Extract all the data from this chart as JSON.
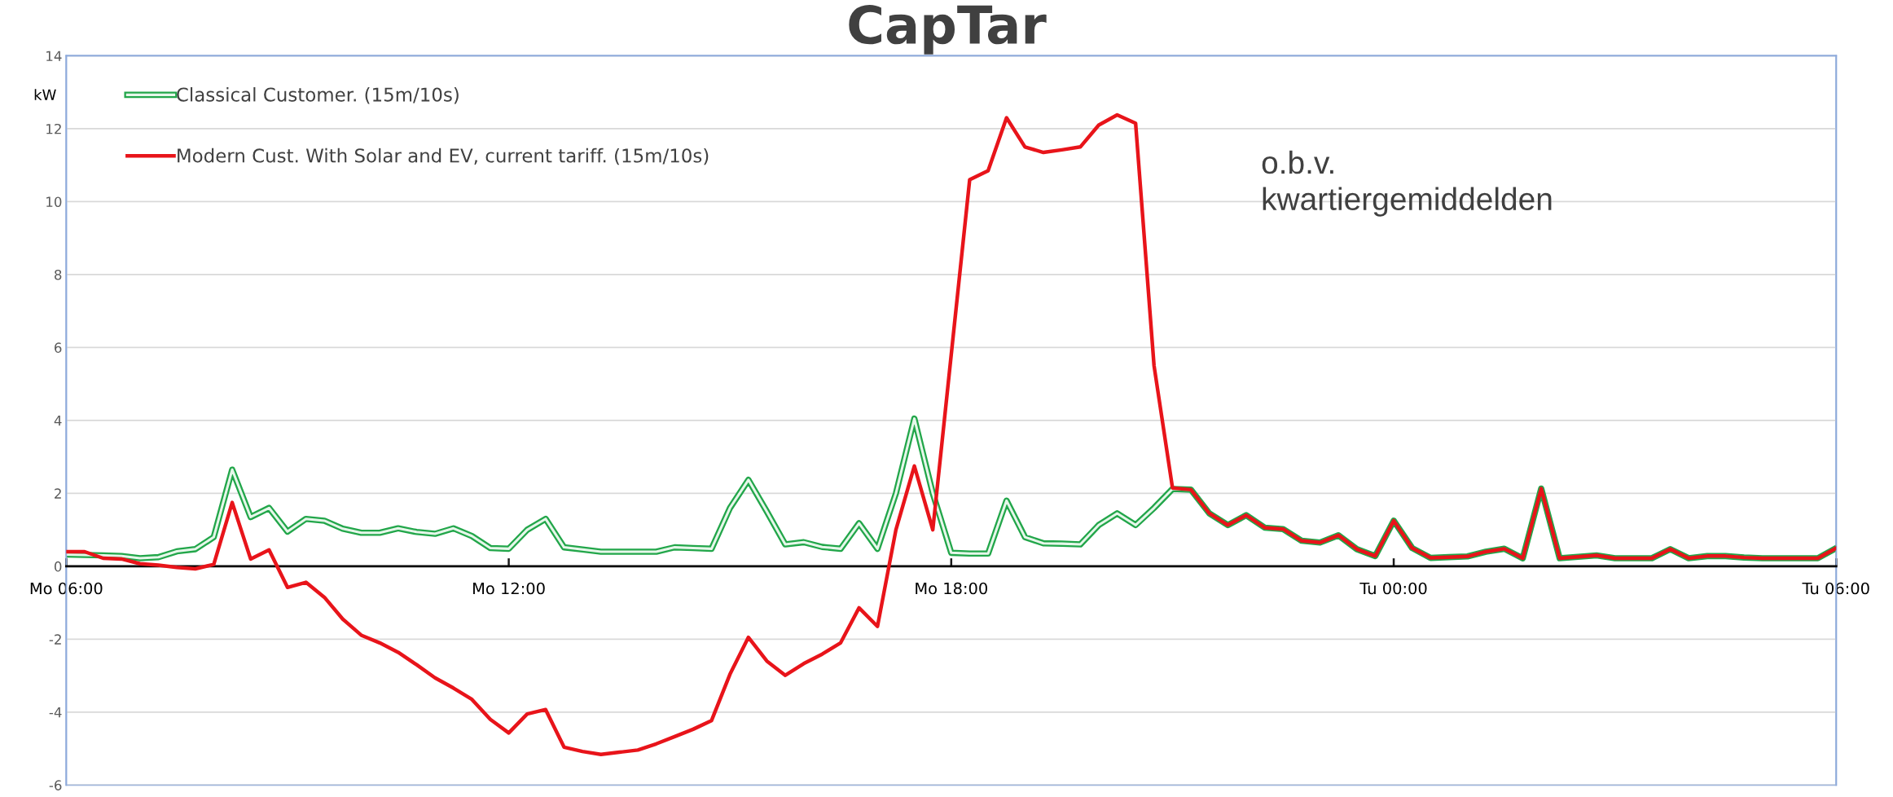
{
  "chart_data": {
    "type": "line",
    "title": "CapTar",
    "ylabel": "kW",
    "annotations": [
      "o.b.v.\nkwartiergemiddelden"
    ],
    "categories": [
      "Mo 06:00",
      null,
      null,
      null,
      null,
      null,
      null,
      null,
      null,
      null,
      null,
      null,
      null,
      null,
      null,
      null,
      null,
      null,
      null,
      null,
      null,
      null,
      null,
      null,
      "Mo 12:00",
      null,
      null,
      null,
      null,
      null,
      null,
      null,
      null,
      null,
      null,
      null,
      null,
      null,
      null,
      null,
      null,
      null,
      null,
      null,
      null,
      null,
      null,
      null,
      "Mo 18:00",
      null,
      null,
      null,
      null,
      null,
      null,
      null,
      null,
      null,
      null,
      null,
      null,
      null,
      null,
      null,
      null,
      null,
      null,
      null,
      null,
      null,
      null,
      null,
      "Tu 00:00",
      null,
      null,
      null,
      null,
      null,
      null,
      null,
      null,
      null,
      null,
      null,
      null,
      null,
      null,
      null,
      null,
      null,
      null,
      null,
      null,
      null,
      null,
      null,
      "Tu 06:00"
    ],
    "ylim": [
      -6,
      14
    ],
    "yticks": [
      -6,
      -4,
      -2,
      0,
      2,
      4,
      6,
      8,
      10,
      12,
      14
    ],
    "grid": "y",
    "legend": "top left",
    "line_style": "solid",
    "marker": "none",
    "series": [
      {
        "name": "Classical Customer. (15m/10s)",
        "color": "#22a64a",
        "values": [
          0.32,
          0.31,
          0.3,
          0.28,
          0.22,
          0.25,
          0.41,
          0.47,
          0.8,
          2.65,
          1.35,
          1.6,
          0.95,
          1.3,
          1.25,
          1.03,
          0.92,
          0.92,
          1.04,
          0.94,
          0.89,
          1.04,
          0.83,
          0.5,
          0.48,
          1.0,
          1.3,
          0.52,
          0.46,
          0.4,
          0.4,
          0.4,
          0.4,
          0.52,
          0.5,
          0.48,
          1.6,
          2.37,
          1.5,
          0.6,
          0.66,
          0.53,
          0.48,
          1.18,
          0.48,
          2.0,
          4.05,
          2.0,
          0.37,
          0.35,
          0.35,
          1.8,
          0.8,
          0.63,
          0.62,
          0.6,
          1.13,
          1.45,
          1.13,
          1.6,
          2.12,
          2.1,
          1.45,
          1.13,
          1.4,
          1.06,
          1.02,
          0.7,
          0.65,
          0.85,
          0.47,
          0.28,
          1.25,
          0.5,
          0.23,
          0.25,
          0.27,
          0.4,
          0.48,
          0.22,
          2.13,
          0.22,
          0.26,
          0.3,
          0.22,
          0.22,
          0.22,
          0.47,
          0.22,
          0.28,
          0.28,
          0.24,
          0.22,
          0.22,
          0.22,
          0.22,
          0.5
        ]
      },
      {
        "name": "Modern Cust. With Solar and EV, current tariff. (15m/10s)",
        "color": "#e8141a",
        "values": [
          0.4,
          0.4,
          0.22,
          0.2,
          0.07,
          0.03,
          -0.03,
          -0.07,
          0.05,
          1.75,
          0.2,
          0.45,
          -0.58,
          -0.44,
          -0.85,
          -1.45,
          -1.89,
          -2.1,
          -2.36,
          -2.7,
          -3.06,
          -3.34,
          -3.65,
          -4.2,
          -4.57,
          -4.05,
          -3.93,
          -4.96,
          -5.08,
          -5.16,
          -5.1,
          -5.04,
          -4.87,
          -4.67,
          -4.47,
          -4.23,
          -2.96,
          -1.95,
          -2.6,
          -2.99,
          -2.67,
          -2.41,
          -2.1,
          -1.14,
          -1.65,
          1.0,
          2.75,
          1.0,
          5.8,
          10.6,
          10.85,
          12.3,
          11.5,
          11.35,
          11.42,
          11.5,
          12.1,
          12.38,
          12.15,
          5.5,
          2.15,
          2.1,
          1.45,
          1.13,
          1.4,
          1.06,
          1.02,
          0.7,
          0.65,
          0.85,
          0.47,
          0.28,
          1.25,
          0.5,
          0.23,
          0.25,
          0.27,
          0.4,
          0.48,
          0.22,
          2.13,
          0.22,
          0.26,
          0.3,
          0.22,
          0.22,
          0.22,
          0.47,
          0.22,
          0.28,
          0.28,
          0.24,
          0.22,
          0.22,
          0.22,
          0.22,
          0.5
        ]
      }
    ]
  }
}
